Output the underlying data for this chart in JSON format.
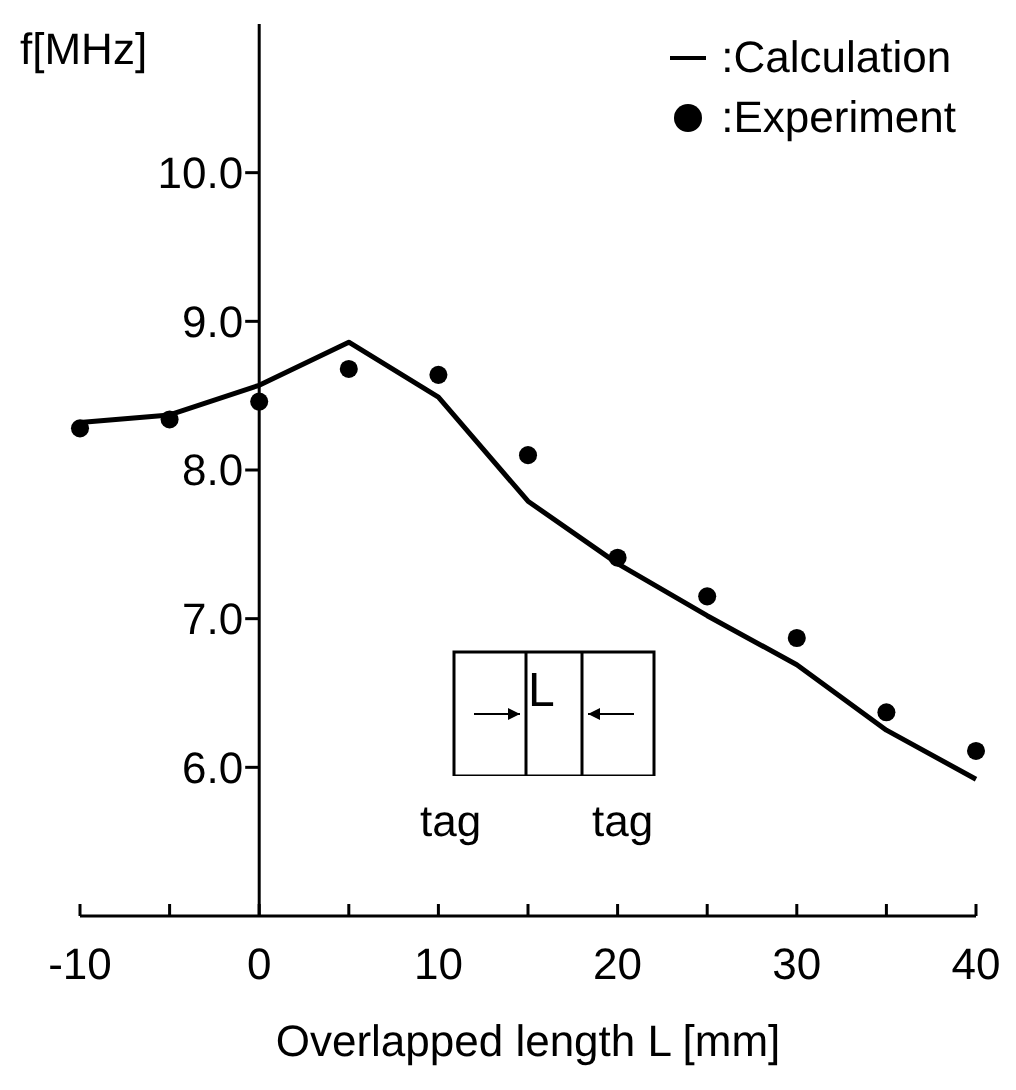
{
  "chart_data": {
    "type": "line",
    "xlabel": "Overlapped length L [mm]",
    "ylabel": "f[MHz]",
    "x": [
      -10,
      -5,
      0,
      5,
      10,
      15,
      20,
      25,
      30,
      35,
      40
    ],
    "series": [
      {
        "name": ":Calculation",
        "type": "line",
        "color": "#000000",
        "marker": "none",
        "line_style": "solid",
        "values": [
          8.32,
          8.37,
          8.57,
          8.86,
          8.49,
          7.79,
          7.37,
          7.02,
          6.69,
          6.25,
          5.92
        ]
      },
      {
        "name": ":Experiment",
        "type": "scatter",
        "color": "#000000",
        "marker": "circle",
        "values": [
          8.28,
          8.34,
          8.46,
          8.68,
          8.64,
          8.1,
          7.41,
          7.15,
          6.87,
          6.37,
          6.11
        ]
      }
    ],
    "xlim": [
      -10,
      40
    ],
    "xticks": [
      -10,
      {
        "value": -5,
        "label": null
      },
      0,
      {
        "value": 5,
        "label": null
      },
      10,
      {
        "value": 15,
        "label": null
      },
      20,
      {
        "value": 25,
        "label": null
      },
      30,
      {
        "value": 35,
        "label": null
      },
      40
    ],
    "ylim": [
      5,
      11
    ],
    "yticks": [
      {
        "value": 6,
        "label": "6.0"
      },
      {
        "value": 7,
        "label": "7.0"
      },
      {
        "value": 8,
        "label": "8.0"
      },
      {
        "value": 9,
        "label": "9.0"
      },
      {
        "value": 10,
        "label": "10.0"
      }
    ],
    "grid": false,
    "legend": "top right",
    "annotations": [
      "L",
      "tag",
      "tag"
    ]
  }
}
